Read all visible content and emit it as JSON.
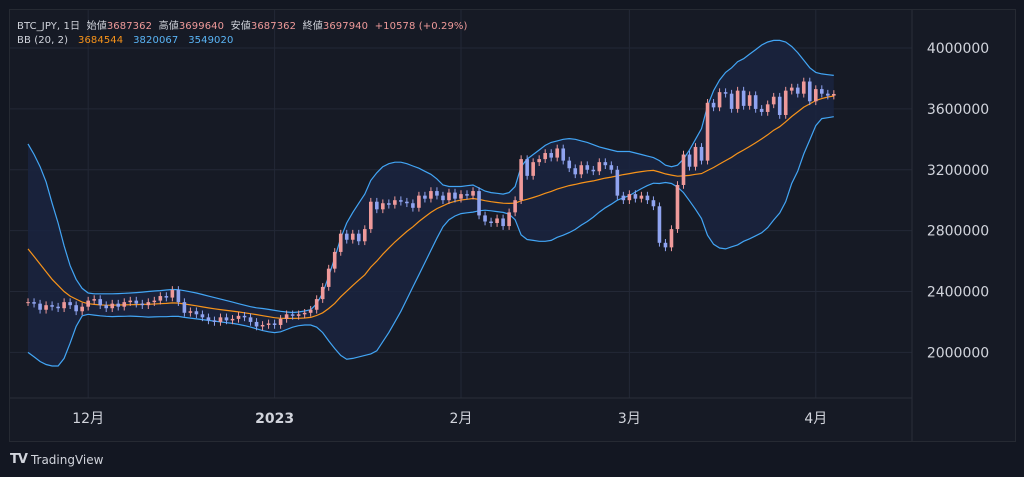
{
  "legend": {
    "symbol": "BTC_JPY, 1日",
    "open_label": "始値",
    "open": "3687362",
    "high_label": "高値",
    "high": "3699640",
    "low_label": "安値",
    "low": "3687362",
    "close_label": "終値",
    "close": "3697940",
    "change": "+10578 (+0.29%)",
    "bb_label": "BB (20, 2)",
    "bb_mid": "3684544",
    "bb_upper": "3820067",
    "bb_lower": "3549020"
  },
  "footer": {
    "brand": "TradingView"
  },
  "colors": {
    "up": "#ef9a9a",
    "down": "#90a4f0",
    "basis": "#f7931a",
    "band": "#42a5f5",
    "band_fill": "#1a2540",
    "grid": "#232836",
    "axis_text": "#d1d4dc"
  },
  "chart_data": {
    "type": "candlestick",
    "y_ticks": [
      2000000,
      2400000,
      2800000,
      3200000,
      3600000,
      4000000
    ],
    "y_tick_labels": [
      "2000000",
      "2400000",
      "2800000",
      "3200000",
      "3600000",
      "4000000"
    ],
    "ylim": [
      1700000,
      4250000
    ],
    "x_tick_labels": [
      {
        "label": "12月",
        "day": 10,
        "bold": false
      },
      {
        "label": "2023",
        "day": 41,
        "bold": true
      },
      {
        "label": "2月",
        "day": 72,
        "bold": false
      },
      {
        "label": "3月",
        "day": 100,
        "bold": false
      },
      {
        "label": "4月",
        "day": 131,
        "bold": false
      }
    ],
    "x_range": [
      -3,
      147
    ],
    "closes": [
      2330000,
      2320000,
      2280000,
      2310000,
      2300000,
      2290000,
      2330000,
      2310000,
      2270000,
      2300000,
      2340000,
      2350000,
      2310000,
      2290000,
      2320000,
      2300000,
      2330000,
      2340000,
      2320000,
      2310000,
      2330000,
      2340000,
      2370000,
      2360000,
      2410000,
      2330000,
      2260000,
      2270000,
      2250000,
      2230000,
      2210000,
      2200000,
      2230000,
      2210000,
      2220000,
      2240000,
      2230000,
      2200000,
      2170000,
      2180000,
      2190000,
      2180000,
      2220000,
      2250000,
      2240000,
      2250000,
      2260000,
      2280000,
      2350000,
      2430000,
      2550000,
      2660000,
      2780000,
      2740000,
      2780000,
      2730000,
      2810000,
      2990000,
      2940000,
      2980000,
      2970000,
      3000000,
      2990000,
      2980000,
      2950000,
      3030000,
      3010000,
      3060000,
      3030000,
      3000000,
      3050000,
      3010000,
      3040000,
      3030000,
      3060000,
      2900000,
      2860000,
      2850000,
      2880000,
      2830000,
      2920000,
      3000000,
      3270000,
      3160000,
      3250000,
      3270000,
      3310000,
      3280000,
      3340000,
      3260000,
      3210000,
      3170000,
      3230000,
      3200000,
      3190000,
      3250000,
      3230000,
      3200000,
      3030000,
      3000000,
      3040000,
      3010000,
      3030000,
      3000000,
      2960000,
      2720000,
      2690000,
      2810000,
      3100000,
      3300000,
      3220000,
      3350000,
      3260000,
      3640000,
      3610000,
      3710000,
      3700000,
      3600000,
      3720000,
      3620000,
      3690000,
      3600000,
      3580000,
      3630000,
      3680000,
      3560000,
      3720000,
      3740000,
      3700000,
      3780000,
      3650000,
      3730000,
      3700000,
      3687362,
      3697940
    ],
    "bb_basis": [
      2680000,
      2630000,
      2580000,
      2530000,
      2480000,
      2440000,
      2400000,
      2370000,
      2350000,
      2330000,
      2320000,
      2315000,
      2312000,
      2310000,
      2310000,
      2311000,
      2312000,
      2313000,
      2314000,
      2315000,
      2316000,
      2318000,
      2320000,
      2322000,
      2325000,
      2324000,
      2318000,
      2312000,
      2306000,
      2299000,
      2292000,
      2286000,
      2281000,
      2276000,
      2271000,
      2266000,
      2260000,
      2254000,
      2248000,
      2241000,
      2234000,
      2228000,
      2224000,
      2223000,
      2223000,
      2224000,
      2226000,
      2230000,
      2242000,
      2260000,
      2288000,
      2322000,
      2365000,
      2402000,
      2440000,
      2475000,
      2510000,
      2560000,
      2600000,
      2645000,
      2685000,
      2725000,
      2760000,
      2795000,
      2825000,
      2860000,
      2890000,
      2920000,
      2945000,
      2963000,
      2981000,
      2993000,
      3001000,
      3006000,
      3011000,
      3005000,
      2997000,
      2990000,
      2985000,
      2980000,
      2979000,
      2981000,
      2996000,
      3006000,
      3018000,
      3030000,
      3045000,
      3058000,
      3073000,
      3085000,
      3096000,
      3104000,
      3113000,
      3120000,
      3127000,
      3136000,
      3145000,
      3152000,
      3160000,
      3168000,
      3175000,
      3182000,
      3188000,
      3193000,
      3196000,
      3185000,
      3173000,
      3165000,
      3158000,
      3160000,
      3163000,
      3170000,
      3175000,
      3195000,
      3215000,
      3238000,
      3260000,
      3282000,
      3308000,
      3330000,
      3353000,
      3378000,
      3403000,
      3430000,
      3460000,
      3483000,
      3515000,
      3550000,
      3580000,
      3612000,
      3633000,
      3655000,
      3668000,
      3678000,
      3684544
    ],
    "bb_upper": [
      3370000,
      3300000,
      3220000,
      3120000,
      2980000,
      2850000,
      2700000,
      2570000,
      2480000,
      2420000,
      2390000,
      2385000,
      2385000,
      2385000,
      2385000,
      2386000,
      2388000,
      2390000,
      2393000,
      2396000,
      2400000,
      2403000,
      2406000,
      2410000,
      2413000,
      2412000,
      2405000,
      2398000,
      2390000,
      2380000,
      2370000,
      2360000,
      2350000,
      2340000,
      2330000,
      2320000,
      2310000,
      2300000,
      2293000,
      2288000,
      2282000,
      2276000,
      2270000,
      2265000,
      2262000,
      2265000,
      2272000,
      2280000,
      2320000,
      2390000,
      2500000,
      2620000,
      2750000,
      2850000,
      2920000,
      2980000,
      3040000,
      3130000,
      3180000,
      3220000,
      3240000,
      3250000,
      3250000,
      3240000,
      3225000,
      3210000,
      3190000,
      3170000,
      3140000,
      3100000,
      3090000,
      3090000,
      3090000,
      3095000,
      3100000,
      3080000,
      3060000,
      3050000,
      3045000,
      3040000,
      3050000,
      3090000,
      3220000,
      3270000,
      3300000,
      3330000,
      3360000,
      3380000,
      3390000,
      3400000,
      3405000,
      3400000,
      3390000,
      3380000,
      3365000,
      3350000,
      3340000,
      3330000,
      3320000,
      3320000,
      3320000,
      3310000,
      3300000,
      3290000,
      3280000,
      3260000,
      3230000,
      3220000,
      3230000,
      3270000,
      3330000,
      3400000,
      3470000,
      3620000,
      3720000,
      3790000,
      3840000,
      3870000,
      3910000,
      3930000,
      3960000,
      3990000,
      4020000,
      4040000,
      4050000,
      4050000,
      4040000,
      4010000,
      3970000,
      3920000,
      3870000,
      3840000,
      3830000,
      3825000,
      3820067
    ],
    "bb_lower": [
      2000000,
      1970000,
      1940000,
      1920000,
      1910000,
      1910000,
      1960000,
      2060000,
      2170000,
      2240000,
      2250000,
      2245000,
      2240000,
      2237000,
      2235000,
      2236000,
      2237000,
      2238000,
      2236000,
      2234000,
      2232000,
      2233000,
      2234000,
      2234000,
      2237000,
      2236000,
      2230000,
      2225000,
      2220000,
      2215000,
      2210000,
      2205000,
      2200000,
      2195000,
      2190000,
      2184000,
      2176000,
      2166000,
      2155000,
      2143000,
      2135000,
      2130000,
      2135000,
      2150000,
      2165000,
      2175000,
      2180000,
      2180000,
      2165000,
      2130000,
      2075000,
      2025000,
      1980000,
      1955000,
      1960000,
      1970000,
      1980000,
      1990000,
      2010000,
      2070000,
      2130000,
      2200000,
      2270000,
      2350000,
      2430000,
      2510000,
      2590000,
      2670000,
      2750000,
      2826000,
      2872000,
      2896000,
      2912000,
      2917000,
      2922000,
      2930000,
      2934000,
      2930000,
      2925000,
      2920000,
      2908000,
      2872000,
      2772000,
      2742000,
      2736000,
      2730000,
      2730000,
      2736000,
      2756000,
      2770000,
      2787000,
      2808000,
      2836000,
      2860000,
      2889000,
      2922000,
      2950000,
      2974000,
      3000000,
      3016000,
      3030000,
      3054000,
      3076000,
      3096000,
      3112000,
      3110000,
      3116000,
      3110000,
      3086000,
      3050000,
      2996000,
      2940000,
      2880000,
      2770000,
      2710000,
      2686000,
      2680000,
      2694000,
      2706000,
      2730000,
      2746000,
      2766000,
      2786000,
      2820000,
      2870000,
      2916000,
      2990000,
      3110000,
      3190000,
      3304000,
      3396000,
      3490000,
      3536000,
      3542000,
      3549020
    ]
  }
}
